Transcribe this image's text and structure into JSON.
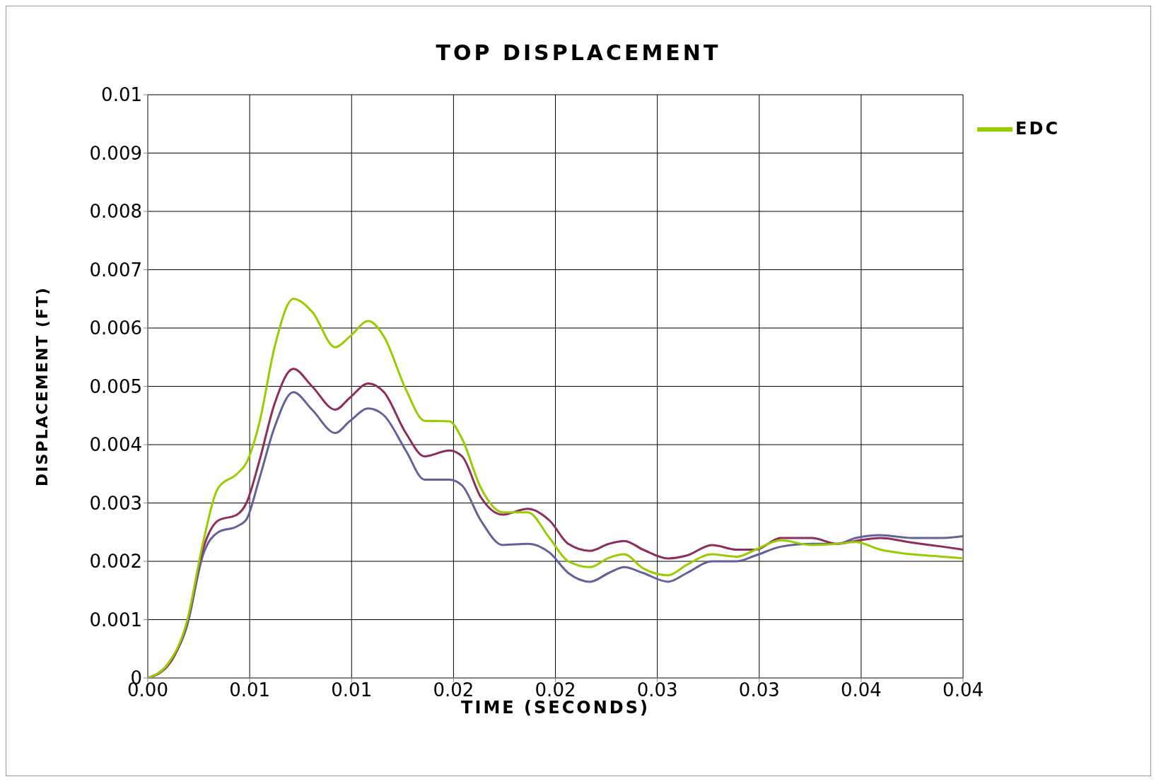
{
  "chart_data": {
    "type": "line",
    "title": "TOP DISPLACEMENT",
    "xlabel": "TIME (SECONDS)",
    "ylabel": "DISPLACEMENT (FT)",
    "x": [
      0,
      0.00101,
      0.00193,
      0.0027,
      0.00346,
      0.00438,
      0.00484,
      0.00546,
      0.00622,
      0.00714,
      0.00806,
      0.0092,
      0.0099,
      0.01082,
      0.01159,
      0.01266,
      0.01358,
      0.0148,
      0.01542,
      0.01634,
      0.01741,
      0.01864,
      0.01971,
      0.02063,
      0.0217,
      0.02262,
      0.02338,
      0.0243,
      0.02553,
      0.02645,
      0.02768,
      0.0289,
      0.02982,
      0.03105,
      0.03258,
      0.03381,
      0.03473,
      0.03595,
      0.03749,
      0.03902,
      0.04
    ],
    "series": [
      {
        "color": "#64609a",
        "values": [
          0,
          0.00025,
          0.0009,
          0.0021,
          0.0025,
          0.0026,
          0.00272,
          0.0034,
          0.0043,
          0.0049,
          0.0046,
          0.0042,
          0.0044,
          0.00462,
          0.0045,
          0.0039,
          0.0034,
          0.0034,
          0.0033,
          0.0027,
          0.00228,
          0.0023,
          0.00215,
          0.0018,
          0.00165,
          0.0018,
          0.0019,
          0.0018,
          0.00165,
          0.0018,
          0.002,
          0.002,
          0.0021,
          0.00225,
          0.0023,
          0.0023,
          0.0024,
          0.00245,
          0.0024,
          0.0024,
          0.00243
        ]
      },
      {
        "color": "#8e2c5c",
        "values": [
          0,
          0.00022,
          0.00095,
          0.0022,
          0.0027,
          0.0028,
          0.003,
          0.0037,
          0.0047,
          0.0053,
          0.005,
          0.0046,
          0.0048,
          0.00505,
          0.0049,
          0.0042,
          0.0038,
          0.0039,
          0.0038,
          0.0031,
          0.0028,
          0.0029,
          0.0027,
          0.0023,
          0.00218,
          0.0023,
          0.00235,
          0.0022,
          0.00205,
          0.0021,
          0.00228,
          0.0022,
          0.0022,
          0.0024,
          0.0024,
          0.0023,
          0.00235,
          0.0024,
          0.00232,
          0.00225,
          0.0022
        ]
      },
      {
        "name": "EDC",
        "color": "#99cc00",
        "values": [
          0,
          0.00025,
          0.00098,
          0.0023,
          0.00326,
          0.0035,
          0.00369,
          0.00435,
          0.00567,
          0.0065,
          0.00628,
          0.00567,
          0.00585,
          0.00612,
          0.00585,
          0.00495,
          0.00441,
          0.0044,
          0.0041,
          0.00326,
          0.00284,
          0.00284,
          0.0024,
          0.002,
          0.0019,
          0.00206,
          0.00212,
          0.00188,
          0.00176,
          0.00194,
          0.00212,
          0.00208,
          0.0022,
          0.00236,
          0.00228,
          0.0023,
          0.00233,
          0.0022,
          0.00212,
          0.00208,
          0.00205
        ]
      }
    ],
    "xlim": [
      0,
      0.04
    ],
    "xticks": [
      {
        "value": 0,
        "label": "0.00"
      },
      {
        "value": 0.005,
        "label": "0.01"
      },
      {
        "value": 0.01,
        "label": "0.01"
      },
      {
        "value": 0.015,
        "label": "0.02"
      },
      {
        "value": 0.02,
        "label": "0.02"
      },
      {
        "value": 0.025,
        "label": "0.03"
      },
      {
        "value": 0.03,
        "label": "0.03"
      },
      {
        "value": 0.035,
        "label": "0.04"
      },
      {
        "value": 0.04,
        "label": "0.04"
      }
    ],
    "ylim": [
      0,
      0.01
    ],
    "yticks": [
      0,
      0.001,
      0.002,
      0.003,
      0.004,
      0.005,
      0.006,
      0.007,
      0.008,
      0.009,
      0.01
    ],
    "grid": true,
    "legend": "top right",
    "marker": "none",
    "line_style": "solid"
  }
}
